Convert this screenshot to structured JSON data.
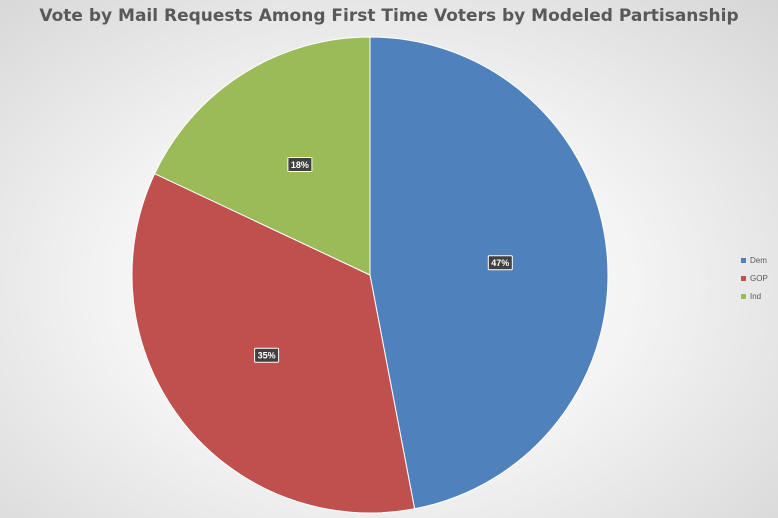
{
  "chart_data": {
    "type": "pie",
    "title": "Vote by Mail Requests Among First Time Voters by Modeled Partisanship",
    "slices": [
      {
        "label": "Dem",
        "value": 47,
        "display": "47%",
        "color": "#4f81bd"
      },
      {
        "label": "GOP",
        "value": 35,
        "display": "35%",
        "color": "#c0504d"
      },
      {
        "label": "Ind",
        "value": 18,
        "display": "18%",
        "color": "#9bbb59"
      }
    ],
    "start_angle_deg": 0,
    "direction": "clockwise",
    "legend_position": "right"
  }
}
